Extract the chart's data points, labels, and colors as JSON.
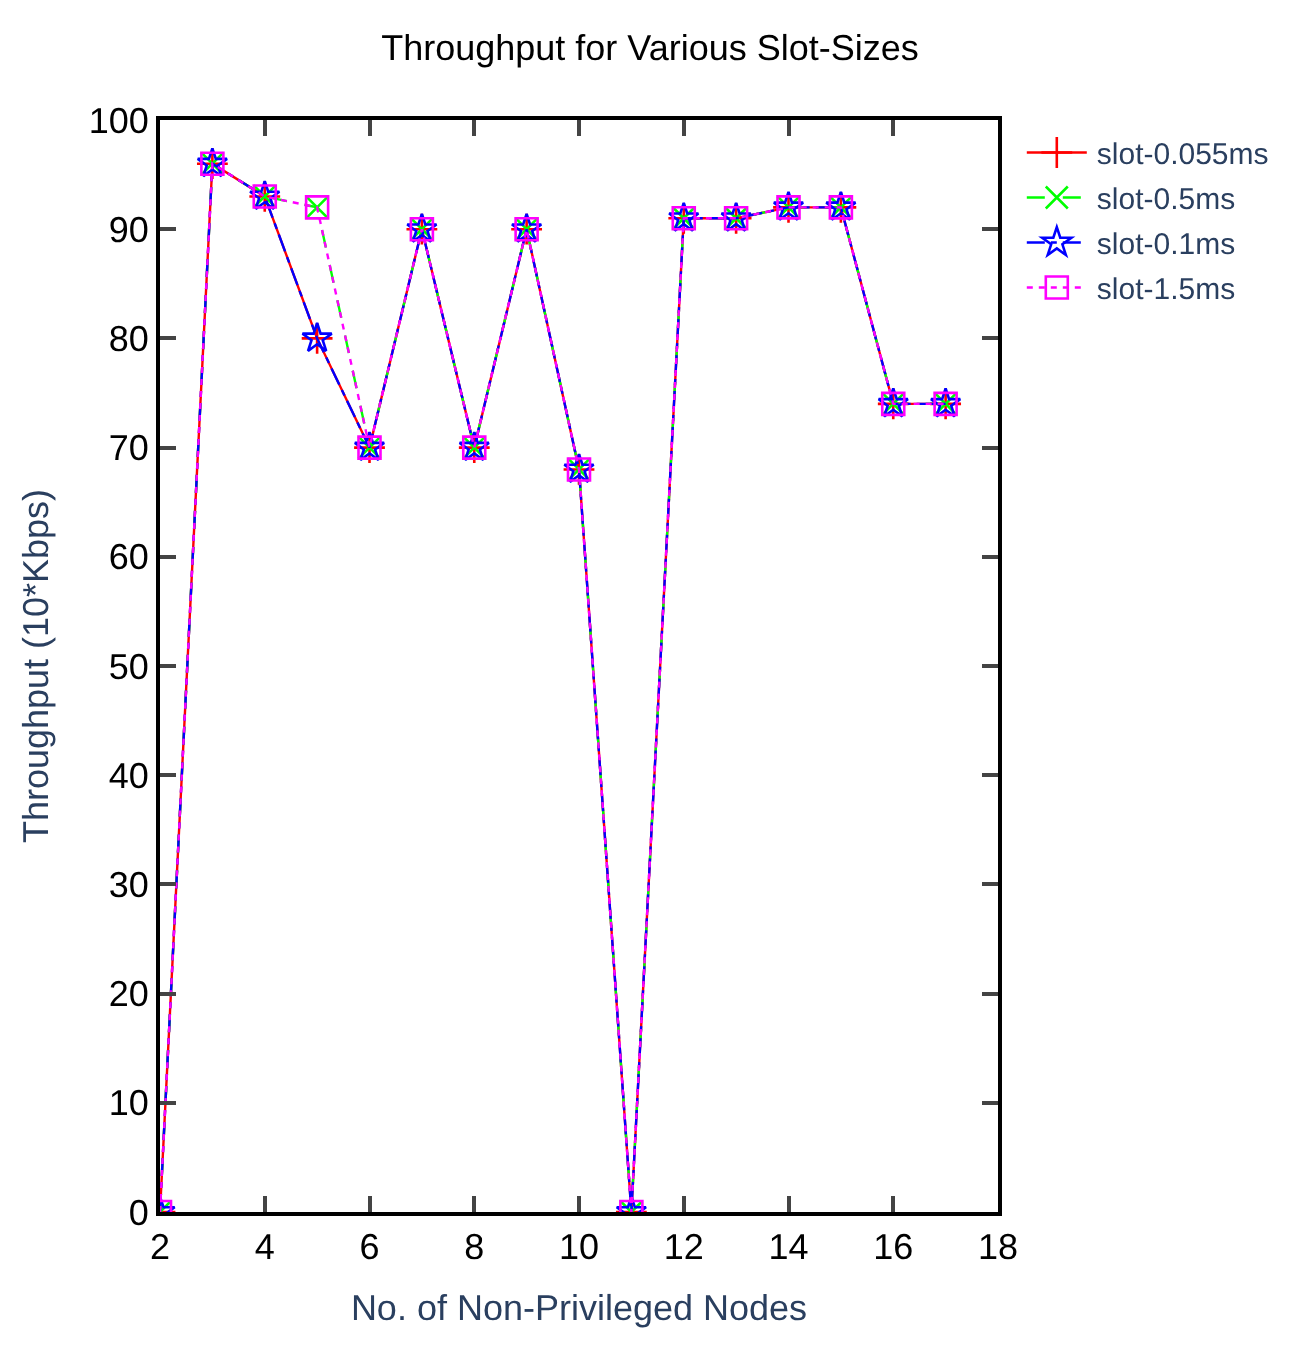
{
  "chart_data": {
    "type": "line",
    "title": "Throughput for Various Slot-Sizes",
    "xlabel": "No. of Non-Privileged Nodes",
    "ylabel": "Throughput (10*Kbps)",
    "x": [
      2,
      3,
      4,
      5,
      6,
      7,
      8,
      9,
      10,
      11,
      12,
      13,
      14,
      15,
      16,
      17
    ],
    "series": [
      {
        "name": "slot-0.055ms",
        "color": "#ff0000",
        "marker": "cross",
        "line_style": "solid",
        "values": [
          0,
          96,
          93,
          80,
          70,
          90,
          70,
          90,
          68,
          0,
          91,
          91,
          92,
          92,
          74,
          74
        ]
      },
      {
        "name": "slot-0.5ms",
        "color": "#00ff00",
        "marker": "x",
        "line_style": "dashed",
        "values": [
          0,
          96,
          93,
          92,
          70,
          90,
          70,
          90,
          68,
          0,
          91,
          91,
          92,
          92,
          74,
          74
        ]
      },
      {
        "name": "slot-0.1ms",
        "color": "#0000ff",
        "marker": "star",
        "line_style": "dashdot",
        "values": [
          0,
          96,
          93,
          80,
          70,
          90,
          70,
          90,
          68,
          0,
          91,
          91,
          92,
          92,
          74,
          74
        ]
      },
      {
        "name": "slot-1.5ms",
        "color": "#ff00ff",
        "marker": "square",
        "line_style": "dotted",
        "values": [
          0,
          96,
          93,
          92,
          70,
          90,
          70,
          90,
          68,
          0,
          91,
          91,
          92,
          92,
          74,
          74
        ]
      }
    ],
    "xlim": [
      2,
      18
    ],
    "xticks": [
      2,
      4,
      6,
      8,
      10,
      12,
      14,
      16,
      18
    ],
    "ylim": [
      0,
      100
    ],
    "yticks": [
      0,
      10,
      20,
      30,
      40,
      50,
      60,
      70,
      80,
      90,
      100
    ],
    "legend": "top right"
  }
}
